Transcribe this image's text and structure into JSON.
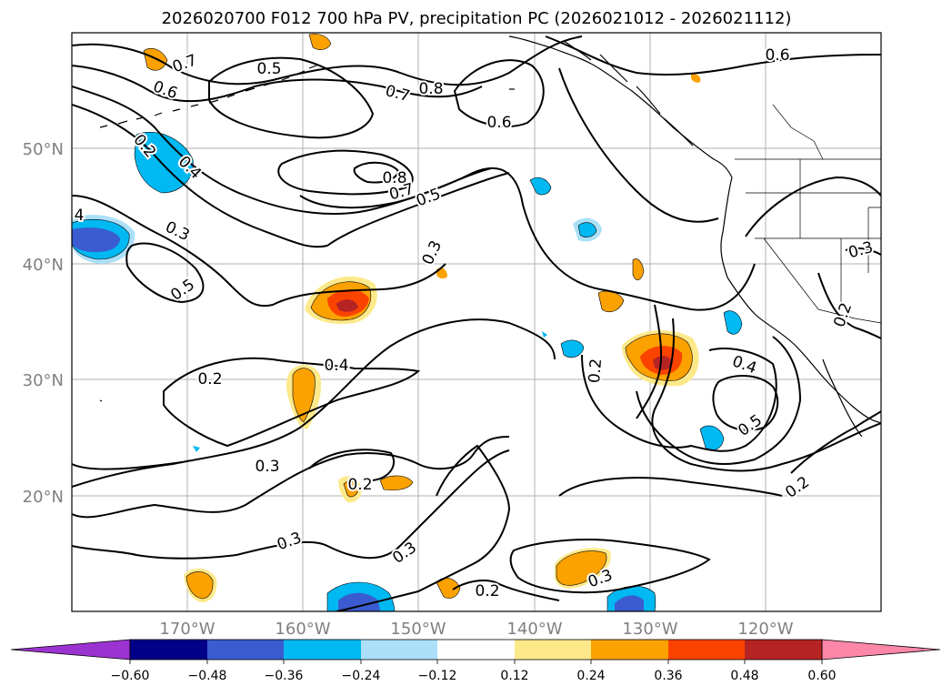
{
  "title": "2026020700 F012 700 hPa PV, precipitation PC (2026021012 - 2026021112)",
  "map": {
    "lon_range": [
      -180,
      -110
    ],
    "lat_range": [
      10,
      60
    ],
    "lon_labels": [
      "170°W",
      "160°W",
      "150°W",
      "140°W",
      "130°W",
      "120°W"
    ],
    "lat_labels": [
      "50°N",
      "40°N",
      "30°N",
      "20°N"
    ]
  },
  "contour_labels": [
    "0.7",
    "0.5",
    "0.6",
    "0.7",
    "0.8",
    "0.6",
    "0.6",
    "0.2",
    "0.4",
    "0.8",
    "0.7",
    "0.5",
    "4",
    "0.3",
    "0.3",
    "0.3",
    "0.5",
    "0.4",
    "0.2",
    "0.2",
    "0.4",
    "0.5",
    "0.3",
    "0.2",
    "0.2",
    "0.2",
    "0.3",
    "0.3",
    "0.2"
  ],
  "colorbar": {
    "colors": [
      "#9a33cf",
      "#000089",
      "#3a5cd0",
      "#00b8f2",
      "#abe0f8",
      "#ffffff",
      "#fde98a",
      "#fba100",
      "#fb4300",
      "#b62323",
      "#fd87a9"
    ],
    "tick_labels": [
      "−0.60",
      "−0.48",
      "−0.36",
      "−0.24",
      "−0.12",
      "0.12",
      "0.24",
      "0.36",
      "0.48",
      "0.60"
    ]
  }
}
